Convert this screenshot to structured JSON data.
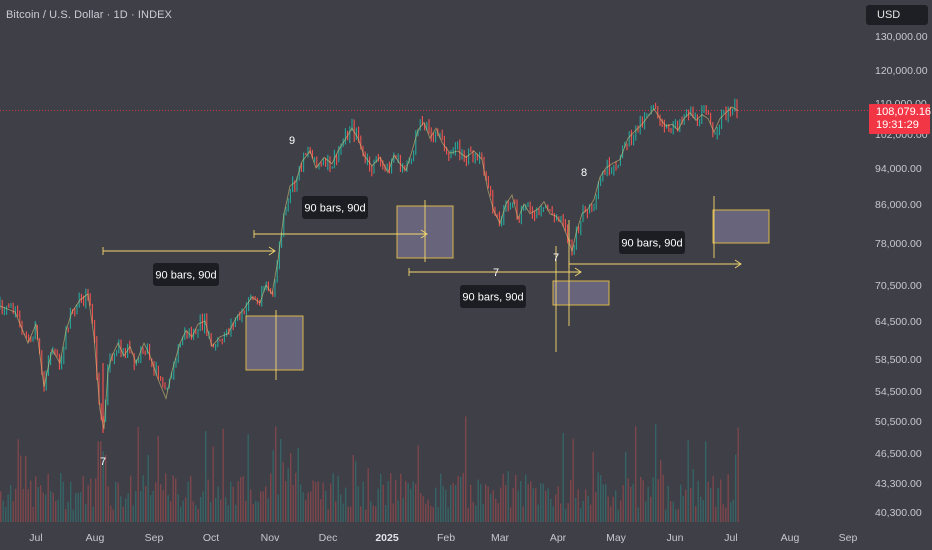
{
  "header": {
    "title": "Bitcoin / U.S. Dollar · 1D · INDEX"
  },
  "currency_button": {
    "label": "USD"
  },
  "price_badge": {
    "price": "108,079.16",
    "countdown": "19:31:29"
  },
  "colors": {
    "up": "#26a69a",
    "down": "#ef5350",
    "accent": "#f5d76e",
    "badge": "#f23645"
  },
  "chart_data": {
    "type": "line",
    "symbol": "Bitcoin / U.S. Dollar",
    "y_ticks": [
      "130,000.00",
      "120,000.00",
      "110,000.00",
      "102,000.00",
      "94,000.00",
      "86,000.00",
      "78,000.00",
      "70,500.00",
      "64,500.00",
      "58,500.00",
      "54,500.00",
      "50,500.00",
      "46,500.00",
      "43,300.00",
      "40,300.00"
    ],
    "x_ticks": [
      "Jul",
      "Aug",
      "Sep",
      "Oct",
      "Nov",
      "Dec",
      "2025",
      "Feb",
      "Mar",
      "Apr",
      "May",
      "Jun",
      "Jul",
      "Aug",
      "Sep"
    ],
    "current_price": 108079.16,
    "price_path": [
      [
        0,
        67000
      ],
      [
        15,
        66000
      ],
      [
        28,
        61000
      ],
      [
        36,
        64000
      ],
      [
        44,
        55000
      ],
      [
        52,
        60000
      ],
      [
        60,
        58000
      ],
      [
        66,
        63000
      ],
      [
        72,
        66000
      ],
      [
        80,
        68000
      ],
      [
        88,
        69000
      ],
      [
        94,
        62000
      ],
      [
        100,
        52000
      ],
      [
        104,
        49500
      ],
      [
        108,
        57000
      ],
      [
        112,
        59000
      ],
      [
        118,
        61000
      ],
      [
        124,
        59000
      ],
      [
        130,
        60500
      ],
      [
        136,
        58000
      ],
      [
        144,
        61000
      ],
      [
        150,
        59000
      ],
      [
        158,
        56000
      ],
      [
        166,
        53500
      ],
      [
        172,
        57000
      ],
      [
        180,
        61000
      ],
      [
        186,
        63000
      ],
      [
        192,
        62000
      ],
      [
        198,
        64000
      ],
      [
        205,
        64500
      ],
      [
        212,
        60500
      ],
      [
        220,
        62000
      ],
      [
        228,
        62500
      ],
      [
        236,
        65000
      ],
      [
        244,
        66500
      ],
      [
        252,
        68500
      ],
      [
        260,
        67500
      ],
      [
        266,
        70500
      ],
      [
        272,
        69000
      ],
      [
        278,
        75000
      ],
      [
        284,
        84000
      ],
      [
        290,
        90000
      ],
      [
        296,
        91000
      ],
      [
        302,
        95500
      ],
      [
        310,
        98000
      ],
      [
        316,
        94000
      ],
      [
        324,
        96500
      ],
      [
        332,
        95000
      ],
      [
        338,
        98000
      ],
      [
        346,
        101000
      ],
      [
        352,
        103500
      ],
      [
        358,
        101000
      ],
      [
        364,
        97000
      ],
      [
        372,
        94500
      ],
      [
        380,
        96500
      ],
      [
        388,
        93000
      ],
      [
        394,
        97000
      ],
      [
        400,
        95000
      ],
      [
        406,
        93500
      ],
      [
        412,
        98000
      ],
      [
        418,
        103000
      ],
      [
        424,
        105000
      ],
      [
        430,
        101000
      ],
      [
        436,
        103500
      ],
      [
        442,
        100000
      ],
      [
        450,
        97500
      ],
      [
        458,
        98000
      ],
      [
        466,
        96500
      ],
      [
        474,
        98000
      ],
      [
        482,
        96000
      ],
      [
        488,
        89000
      ],
      [
        494,
        84500
      ],
      [
        500,
        82000
      ],
      [
        506,
        86000
      ],
      [
        512,
        88000
      ],
      [
        518,
        83000
      ],
      [
        524,
        86000
      ],
      [
        530,
        84000
      ],
      [
        538,
        85000
      ],
      [
        544,
        86500
      ],
      [
        550,
        84000
      ],
      [
        556,
        83500
      ],
      [
        562,
        82000
      ],
      [
        568,
        79000
      ],
      [
        572,
        76500
      ],
      [
        576,
        80000
      ],
      [
        582,
        84000
      ],
      [
        588,
        85000
      ],
      [
        594,
        87000
      ],
      [
        600,
        92000
      ],
      [
        606,
        94000
      ],
      [
        612,
        95000
      ],
      [
        620,
        96000
      ],
      [
        628,
        101000
      ],
      [
        636,
        103000
      ],
      [
        642,
        104500
      ],
      [
        648,
        106500
      ],
      [
        654,
        108500
      ],
      [
        660,
        106000
      ],
      [
        666,
        104000
      ],
      [
        672,
        104500
      ],
      [
        678,
        103000
      ],
      [
        684,
        106000
      ],
      [
        690,
        107500
      ],
      [
        696,
        105500
      ],
      [
        702,
        107000
      ],
      [
        708,
        106000
      ],
      [
        714,
        102500
      ],
      [
        720,
        106000
      ],
      [
        726,
        107500
      ],
      [
        732,
        109000
      ],
      [
        738,
        108000
      ]
    ],
    "annotations": {
      "bar_counts": [
        "7",
        "9",
        "7",
        "7",
        "8"
      ],
      "ranges": [
        "90 bars, 90d",
        "90 bars, 90d",
        "90 bars, 90d",
        "90 bars, 90d"
      ]
    }
  }
}
